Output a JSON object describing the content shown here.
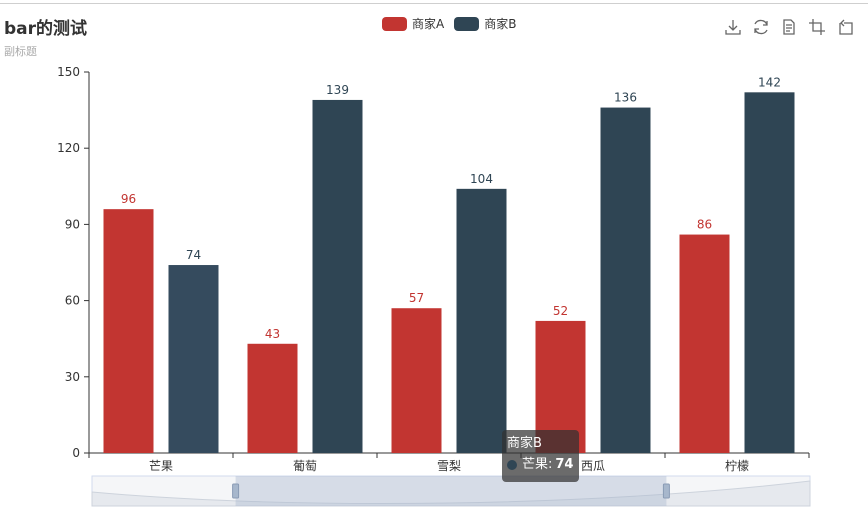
{
  "title": "bar的测试",
  "subtitle": "副标题",
  "legend": [
    {
      "name": "商家A",
      "color": "#c23531"
    },
    {
      "name": "商家B",
      "color": "#2f4554"
    }
  ],
  "toolbox": [
    "download-icon",
    "refresh-icon",
    "data-view-icon",
    "zoom-icon",
    "zoom-reset-icon"
  ],
  "tooltip": {
    "series": "商家B",
    "category": "芒果:",
    "value": "74",
    "color": "#2f4554"
  },
  "chart_data": {
    "type": "bar",
    "title": "bar的测试",
    "subtitle": "副标题",
    "categories": [
      "芒果",
      "葡萄",
      "雪梨",
      "西瓜",
      "柠檬"
    ],
    "series": [
      {
        "name": "商家A",
        "color": "#c23531",
        "values": [
          96,
          43,
          57,
          52,
          86
        ]
      },
      {
        "name": "商家B",
        "color": "#2f4554",
        "values": [
          74,
          139,
          104,
          136,
          142
        ]
      }
    ],
    "yticks": [
      0,
      30,
      60,
      90,
      120,
      150
    ],
    "ylim": [
      0,
      150
    ],
    "legend_position": "top-center",
    "grid": false,
    "datazoom": {
      "start": 0.2,
      "end": 0.8
    }
  }
}
